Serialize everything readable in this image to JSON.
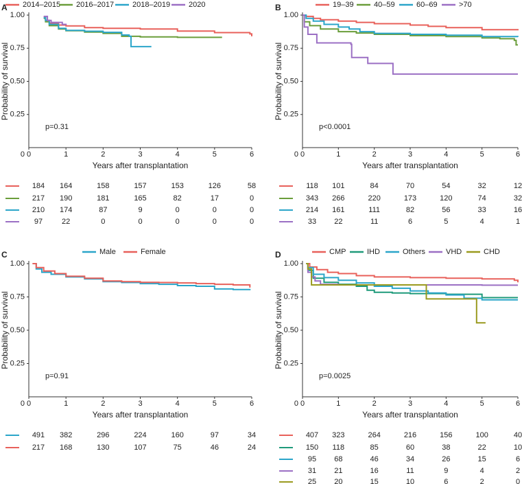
{
  "chart_data": [
    {
      "type": "line",
      "panel": "A",
      "xlabel": "Years after transplantation",
      "ylabel": "Probability of survival",
      "xlim": [
        0,
        6
      ],
      "ylim": [
        0,
        1
      ],
      "xticks": [
        "0",
        "1",
        "2",
        "3",
        "4",
        "5",
        "6"
      ],
      "yticks": [
        "0",
        "0.25",
        "0.50",
        "0.75",
        "1.00"
      ],
      "annotation": "p=0.31",
      "series": [
        {
          "name": "2014–2015",
          "color": "#e8605a",
          "points": [
            [
              0.4,
              0.985
            ],
            [
              0.45,
              0.96
            ],
            [
              0.55,
              0.94
            ],
            [
              0.8,
              0.925
            ],
            [
              1.0,
              0.918
            ],
            [
              1.5,
              0.905
            ],
            [
              2.0,
              0.9
            ],
            [
              3.0,
              0.895
            ],
            [
              4.0,
              0.88
            ],
            [
              5.0,
              0.868
            ],
            [
              5.95,
              0.858
            ],
            [
              6.0,
              0.84
            ]
          ]
        },
        {
          "name": "2016–2017",
          "color": "#6a9d3a",
          "points": [
            [
              0.4,
              0.975
            ],
            [
              0.45,
              0.95
            ],
            [
              0.55,
              0.92
            ],
            [
              0.8,
              0.895
            ],
            [
              1.0,
              0.882
            ],
            [
              1.5,
              0.872
            ],
            [
              2.0,
              0.862
            ],
            [
              2.5,
              0.84
            ],
            [
              3.0,
              0.835
            ],
            [
              4.0,
              0.832
            ],
            [
              5.2,
              0.832
            ]
          ]
        },
        {
          "name": "2018–2019",
          "color": "#2aa5c9",
          "points": [
            [
              0.4,
              0.98
            ],
            [
              0.45,
              0.96
            ],
            [
              0.55,
              0.93
            ],
            [
              0.8,
              0.9
            ],
            [
              1.0,
              0.885
            ],
            [
              1.5,
              0.878
            ],
            [
              2.0,
              0.87
            ],
            [
              2.5,
              0.85
            ],
            [
              2.7,
              0.84
            ],
            [
              2.75,
              0.762
            ],
            [
              3.3,
              0.762
            ]
          ]
        },
        {
          "name": "2020",
          "color": "#9b6fc4",
          "points": [
            [
              0.4,
              0.99
            ],
            [
              0.5,
              0.96
            ],
            [
              0.6,
              0.945
            ],
            [
              0.9,
              0.93
            ],
            [
              1.0,
              0.925
            ]
          ]
        }
      ],
      "risk_rows": [
        [
          "184",
          "164",
          "158",
          "157",
          "153",
          "126",
          "58"
        ],
        [
          "217",
          "190",
          "181",
          "165",
          "82",
          "17",
          "0"
        ],
        [
          "210",
          "174",
          "87",
          "9",
          "0",
          "0",
          "0"
        ],
        [
          "97",
          "22",
          "0",
          "0",
          "0",
          "0",
          "0"
        ]
      ]
    },
    {
      "type": "line",
      "panel": "B",
      "xlabel": "Years after transplantation",
      "ylabel": "Probability of survival",
      "xlim": [
        0,
        6
      ],
      "ylim": [
        0,
        1
      ],
      "xticks": [
        "0",
        "1",
        "2",
        "3",
        "4",
        "5",
        "6"
      ],
      "yticks": [
        "0",
        "0.25",
        "0.50",
        "0.75",
        "1.00"
      ],
      "annotation": "p<0.0001",
      "series": [
        {
          "name": "19–39",
          "color": "#e8605a",
          "points": [
            [
              0,
              1.0
            ],
            [
              0.1,
              0.99
            ],
            [
              0.3,
              0.975
            ],
            [
              0.5,
              0.965
            ],
            [
              1.0,
              0.955
            ],
            [
              1.5,
              0.945
            ],
            [
              2.0,
              0.935
            ],
            [
              3.0,
              0.925
            ],
            [
              3.5,
              0.915
            ],
            [
              4.0,
              0.905
            ],
            [
              5.0,
              0.89
            ],
            [
              6.0,
              0.885
            ]
          ]
        },
        {
          "name": "40–59",
          "color": "#6a9d3a",
          "points": [
            [
              0,
              1.0
            ],
            [
              0.05,
              0.95
            ],
            [
              0.2,
              0.92
            ],
            [
              0.5,
              0.895
            ],
            [
              1.0,
              0.875
            ],
            [
              1.5,
              0.865
            ],
            [
              2.0,
              0.855
            ],
            [
              3.0,
              0.845
            ],
            [
              4.0,
              0.838
            ],
            [
              5.0,
              0.828
            ],
            [
              5.5,
              0.822
            ],
            [
              5.9,
              0.81
            ],
            [
              5.95,
              0.775
            ],
            [
              6.0,
              0.775
            ]
          ]
        },
        {
          "name": "60–69",
          "color": "#2aa5c9",
          "points": [
            [
              0,
              1.0
            ],
            [
              0.1,
              0.975
            ],
            [
              0.3,
              0.955
            ],
            [
              0.6,
              0.93
            ],
            [
              1.0,
              0.91
            ],
            [
              1.3,
              0.895
            ],
            [
              1.6,
              0.875
            ],
            [
              2.0,
              0.862
            ],
            [
              3.0,
              0.855
            ],
            [
              4.0,
              0.848
            ],
            [
              5.0,
              0.838
            ],
            [
              6.0,
              0.835
            ]
          ]
        },
        {
          "name": ">70",
          "color": "#9b6fc4",
          "points": [
            [
              0,
              1.0
            ],
            [
              0.05,
              0.91
            ],
            [
              0.15,
              0.855
            ],
            [
              0.4,
              0.79
            ],
            [
              1.0,
              0.79
            ],
            [
              1.35,
              0.78
            ],
            [
              1.37,
              0.68
            ],
            [
              1.8,
              0.68
            ],
            [
              1.82,
              0.635
            ],
            [
              2.5,
              0.635
            ],
            [
              2.52,
              0.555
            ],
            [
              6.0,
              0.555
            ]
          ]
        }
      ],
      "risk_rows": [
        [
          "118",
          "101",
          "84",
          "70",
          "54",
          "32",
          "12"
        ],
        [
          "343",
          "266",
          "220",
          "173",
          "120",
          "74",
          "32"
        ],
        [
          "214",
          "161",
          "111",
          "82",
          "56",
          "33",
          "16"
        ],
        [
          "33",
          "22",
          "11",
          "6",
          "5",
          "4",
          "1"
        ]
      ]
    },
    {
      "type": "line",
      "panel": "C",
      "xlabel": "Years after transplantation",
      "ylabel": "Probability of survival",
      "xlim": [
        0,
        6
      ],
      "ylim": [
        0,
        1
      ],
      "xticks": [
        "0",
        "1",
        "2",
        "3",
        "4",
        "5",
        "6"
      ],
      "yticks": [
        "0",
        "0.25",
        "0.50",
        "0.75",
        "1.00"
      ],
      "annotation": "p=0.91",
      "series": [
        {
          "name": "Male",
          "color": "#2aa5c9",
          "points": [
            [
              0.1,
              1.0
            ],
            [
              0.2,
              0.96
            ],
            [
              0.35,
              0.935
            ],
            [
              0.6,
              0.92
            ],
            [
              1.0,
              0.9
            ],
            [
              1.5,
              0.885
            ],
            [
              2.0,
              0.865
            ],
            [
              2.5,
              0.858
            ],
            [
              3.0,
              0.85
            ],
            [
              3.5,
              0.845
            ],
            [
              4.0,
              0.835
            ],
            [
              4.5,
              0.83
            ],
            [
              5.0,
              0.81
            ],
            [
              5.5,
              0.805
            ],
            [
              5.95,
              0.8
            ]
          ]
        },
        {
          "name": "Female",
          "color": "#e8605a",
          "points": [
            [
              0.1,
              1.0
            ],
            [
              0.2,
              0.97
            ],
            [
              0.4,
              0.945
            ],
            [
              0.7,
              0.925
            ],
            [
              1.0,
              0.905
            ],
            [
              1.5,
              0.89
            ],
            [
              2.0,
              0.87
            ],
            [
              2.5,
              0.865
            ],
            [
              3.0,
              0.86
            ],
            [
              3.5,
              0.858
            ],
            [
              4.0,
              0.855
            ],
            [
              4.5,
              0.85
            ],
            [
              5.0,
              0.845
            ],
            [
              5.5,
              0.84
            ],
            [
              5.95,
              0.82
            ]
          ]
        }
      ],
      "risk_rows": [
        [
          "491",
          "382",
          "296",
          "224",
          "160",
          "97",
          "34"
        ],
        [
          "217",
          "168",
          "130",
          "107",
          "75",
          "46",
          "24"
        ]
      ]
    },
    {
      "type": "line",
      "panel": "D",
      "xlabel": "Years after transplantation",
      "ylabel": "Probability of survival",
      "xlim": [
        0,
        6
      ],
      "ylim": [
        0,
        1
      ],
      "xticks": [
        "0",
        "1",
        "2",
        "3",
        "4",
        "5",
        "6"
      ],
      "yticks": [
        "0",
        "0.25",
        "0.50",
        "0.75",
        "1.00"
      ],
      "annotation": "p=0.0025",
      "series": [
        {
          "name": "CMP",
          "color": "#e8605a",
          "points": [
            [
              0.1,
              1.0
            ],
            [
              0.2,
              0.975
            ],
            [
              0.4,
              0.955
            ],
            [
              0.7,
              0.935
            ],
            [
              1.0,
              0.925
            ],
            [
              1.5,
              0.91
            ],
            [
              2.0,
              0.9
            ],
            [
              3.0,
              0.895
            ],
            [
              4.0,
              0.89
            ],
            [
              5.0,
              0.885
            ],
            [
              5.9,
              0.875
            ],
            [
              6.0,
              0.86
            ]
          ]
        },
        {
          "name": "IHD",
          "color": "#1f9a7a",
          "points": [
            [
              0.1,
              1.0
            ],
            [
              0.15,
              0.95
            ],
            [
              0.3,
              0.89
            ],
            [
              0.6,
              0.86
            ],
            [
              1.0,
              0.845
            ],
            [
              1.5,
              0.83
            ],
            [
              1.8,
              0.8
            ],
            [
              2.0,
              0.785
            ],
            [
              2.5,
              0.78
            ],
            [
              3.0,
              0.775
            ],
            [
              4.0,
              0.77
            ],
            [
              4.5,
              0.77
            ],
            [
              5.0,
              0.745
            ],
            [
              6.0,
              0.745
            ]
          ]
        },
        {
          "name": "Others",
          "color": "#2aa5c9",
          "points": [
            [
              0.1,
              1.0
            ],
            [
              0.15,
              0.97
            ],
            [
              0.3,
              0.92
            ],
            [
              0.6,
              0.895
            ],
            [
              1.0,
              0.875
            ],
            [
              1.5,
              0.855
            ],
            [
              2.0,
              0.83
            ],
            [
              2.5,
              0.815
            ],
            [
              3.0,
              0.795
            ],
            [
              3.5,
              0.78
            ],
            [
              4.0,
              0.765
            ],
            [
              4.5,
              0.74
            ],
            [
              5.0,
              0.728
            ],
            [
              6.0,
              0.728
            ]
          ]
        },
        {
          "name": "VHD",
          "color": "#9b6fc4",
          "points": [
            [
              0.1,
              1.0
            ],
            [
              0.15,
              0.935
            ],
            [
              0.25,
              0.9
            ],
            [
              0.35,
              0.87
            ],
            [
              0.5,
              0.845
            ],
            [
              1.0,
              0.84
            ],
            [
              2.0,
              0.84
            ],
            [
              3.0,
              0.84
            ],
            [
              4.0,
              0.84
            ],
            [
              5.0,
              0.838
            ],
            [
              6.0,
              0.838
            ]
          ]
        },
        {
          "name": "CHD",
          "color": "#9a9a1e",
          "points": [
            [
              0.1,
              1.0
            ],
            [
              0.15,
              0.96
            ],
            [
              0.25,
              0.84
            ],
            [
              1.0,
              0.84
            ],
            [
              2.0,
              0.84
            ],
            [
              3.4,
              0.84
            ],
            [
              3.45,
              0.735
            ],
            [
              4.0,
              0.735
            ],
            [
              4.8,
              0.735
            ],
            [
              4.85,
              0.555
            ],
            [
              5.1,
              0.555
            ]
          ]
        }
      ],
      "risk_rows": [
        [
          "407",
          "323",
          "264",
          "216",
          "156",
          "100",
          "40"
        ],
        [
          "150",
          "118",
          "85",
          "60",
          "38",
          "22",
          "10"
        ],
        [
          "95",
          "68",
          "46",
          "34",
          "26",
          "15",
          "6"
        ],
        [
          "31",
          "21",
          "16",
          "11",
          "9",
          "4",
          "2"
        ],
        [
          "25",
          "20",
          "15",
          "10",
          "6",
          "2",
          "0"
        ]
      ]
    }
  ]
}
